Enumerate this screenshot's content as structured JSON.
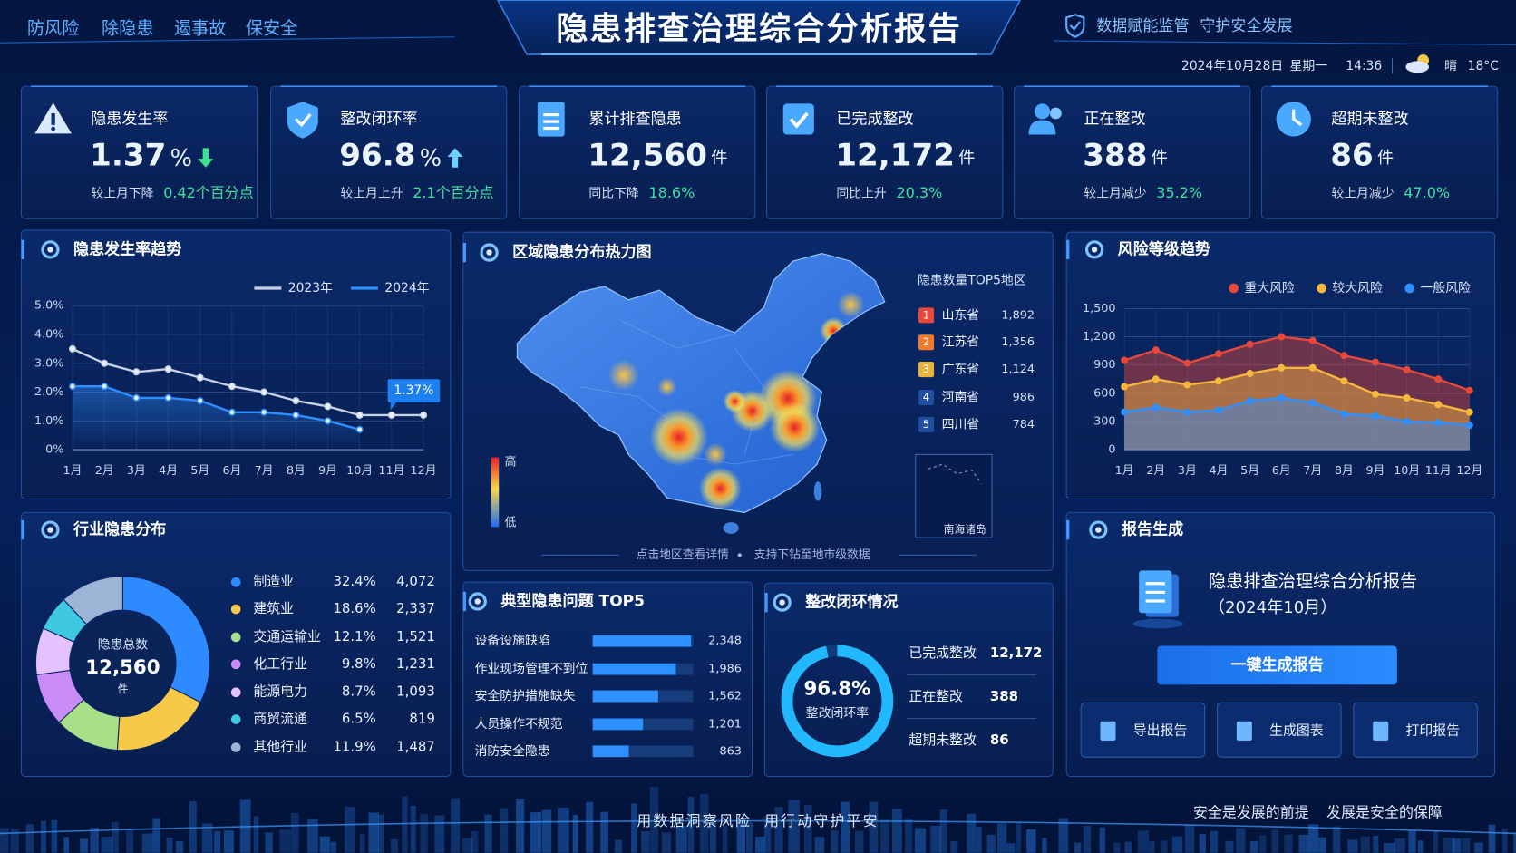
{
  "header": {
    "slogans": [
      "防风险",
      "除隐患",
      "遏事故",
      "保安全"
    ],
    "title": "隐患排查治理综合分析报告",
    "tagline": [
      "数据赋能监管",
      "守护安全发展"
    ],
    "date": "2024年10月28日",
    "weekday": "星期一",
    "time": "14:36",
    "weather": "晴",
    "temperature": "18°C"
  },
  "kpis": [
    {
      "label": "隐患发生率",
      "value": "1.37",
      "unit": "%",
      "trend": "down",
      "note": "较上月下降",
      "change": "0.42个百分点"
    },
    {
      "label": "整改闭环率",
      "value": "96.8",
      "unit": "%",
      "trend": "up",
      "note": "较上月上升",
      "change": "2.1个百分点"
    },
    {
      "label": "累计排查隐患",
      "value": "12,560",
      "unit": "件",
      "note": "同比下降",
      "change": "18.6%"
    },
    {
      "label": "已完成整改",
      "value": "12,172",
      "unit": "件",
      "note": "同比上升",
      "change": "20.3%"
    },
    {
      "label": "正在整改",
      "value": "388",
      "unit": "件",
      "note": "较上月减少",
      "change": "35.2%"
    },
    {
      "label": "超期未整改",
      "value": "86",
      "unit": "件",
      "note": "较上月减少",
      "change": "47.0%"
    }
  ],
  "chart_data": [
    {
      "type": "line",
      "title": "隐患发生率趋势",
      "categories": [
        "1月",
        "2月",
        "3月",
        "4月",
        "5月",
        "6月",
        "7月",
        "8月",
        "9月",
        "10月",
        "11月",
        "12月"
      ],
      "series": [
        {
          "name": "2023年",
          "color": "#c9d3e6",
          "values": [
            3.5,
            3.0,
            2.7,
            2.8,
            2.5,
            2.2,
            2.0,
            1.7,
            1.5,
            1.2,
            1.2,
            1.2
          ]
        },
        {
          "name": "2024年",
          "color": "#2e8fff",
          "values": [
            2.2,
            2.2,
            1.8,
            1.8,
            1.7,
            1.3,
            1.3,
            1.2,
            1.0,
            0.7,
            null,
            null
          ]
        }
      ],
      "ylim": [
        0,
        5
      ],
      "yticks": [
        {
          "value": 0,
          "label": "0%"
        },
        {
          "value": 1,
          "label": "1.0%"
        },
        {
          "value": 2,
          "label": "2.0%"
        },
        {
          "value": 3,
          "label": "3.0%"
        },
        {
          "value": 4,
          "label": "4.0%"
        },
        {
          "value": 5,
          "label": "5.0%"
        }
      ],
      "annotation": "1.37%",
      "grid": true
    },
    {
      "type": "area",
      "title": "风险等级趋势",
      "categories": [
        "1月",
        "2月",
        "3月",
        "4月",
        "5月",
        "6月",
        "7月",
        "8月",
        "9月",
        "10月",
        "11月",
        "12月"
      ],
      "series": [
        {
          "name": "重大风险",
          "color": "#e8483a",
          "values": [
            950,
            1060,
            920,
            1020,
            1120,
            1200,
            1160,
            1000,
            930,
            850,
            750,
            630
          ]
        },
        {
          "name": "较大风险",
          "color": "#f5b83d",
          "values": [
            670,
            750,
            690,
            730,
            810,
            870,
            870,
            730,
            590,
            550,
            480,
            400
          ]
        },
        {
          "name": "一般风险",
          "color": "#2e8fff",
          "values": [
            400,
            450,
            400,
            420,
            520,
            550,
            500,
            380,
            360,
            300,
            290,
            260
          ]
        }
      ],
      "ylim": [
        0,
        1500
      ],
      "yticks": [
        0,
        300,
        600,
        900,
        {
          "value": 1200,
          "label": "1,200"
        },
        {
          "value": 1500,
          "label": "1,500"
        }
      ],
      "grid": true
    },
    {
      "type": "donut",
      "title": "行业隐患分布",
      "center_label": "隐患总数",
      "total": "12,560",
      "unit": "件",
      "categories": [
        "制造业",
        "建筑业",
        "交通运输业",
        "化工行业",
        "能源电力",
        "商贸流通",
        "其他行业"
      ],
      "values": [
        32.4,
        18.6,
        12.1,
        9.8,
        8.7,
        6.5,
        11.9
      ],
      "value_labels": [
        "32.4%",
        "18.6%",
        "12.1%",
        "9.8%",
        "8.7%",
        "6.5%",
        "11.9%"
      ],
      "counts": [
        "4,072",
        "2,337",
        "1,521",
        "1,231",
        "1,093",
        "819",
        "1,487"
      ],
      "colors": [
        "#2e8bff",
        "#f7c948",
        "#a8e08a",
        "#c98bf5",
        "#e3c2ff",
        "#3fc9e0",
        "#9db4d6"
      ]
    },
    {
      "type": "hbar",
      "title": "典型隐患问题 TOP5",
      "categories": [
        "设备设施缺陷",
        "作业现场管理不到位",
        "安全防护措施缺失",
        "人员操作不规范",
        "消防安全隐患"
      ],
      "values": [
        2348,
        1986,
        1562,
        1201,
        863
      ],
      "value_labels": [
        "2,348",
        "1,986",
        "1,562",
        "1,201",
        "863"
      ],
      "xlim": [
        0,
        2400
      ],
      "color": "#2e8fff"
    },
    {
      "type": "gauge",
      "title": "整改闭环情况",
      "value": 96.8,
      "value_label": "96.8%",
      "label": "整改闭环率",
      "ylim": [
        0,
        100
      ],
      "color": "#22b8ff",
      "items": [
        {
          "name": "已完成整改",
          "value": "12,172"
        },
        {
          "name": "正在整改",
          "value": "388"
        },
        {
          "name": "超期未整改",
          "value": "86"
        }
      ]
    }
  ],
  "map": {
    "title": "区域隐患分布热力图",
    "legend_high": "高",
    "legend_low": "低",
    "top5_title": "隐患数量TOP5地区",
    "top5": [
      {
        "rank": "1",
        "name": "山东省",
        "value": "1,892"
      },
      {
        "rank": "2",
        "name": "江苏省",
        "value": "1,356"
      },
      {
        "rank": "3",
        "name": "广东省",
        "value": "1,124"
      },
      {
        "rank": "4",
        "name": "河南省",
        "value": "986"
      },
      {
        "rank": "5",
        "name": "四川省",
        "value": "784"
      }
    ],
    "inset": "南海诸岛",
    "hints": [
      "点击地区查看详情",
      "支持下钻至地市级数据"
    ]
  },
  "report": {
    "title": "报告生成",
    "doc_title": "隐患排查治理综合分析报告",
    "period": "（2024年10月）",
    "button": "一键生成报告",
    "actions": [
      "导出报告",
      "生成图表",
      "打印报告"
    ]
  },
  "footer": {
    "slogans": [
      "用数据洞察风险",
      "用行动守护平安"
    ],
    "mottos": [
      "安全是发展的前提",
      "发展是安全的保障"
    ]
  }
}
